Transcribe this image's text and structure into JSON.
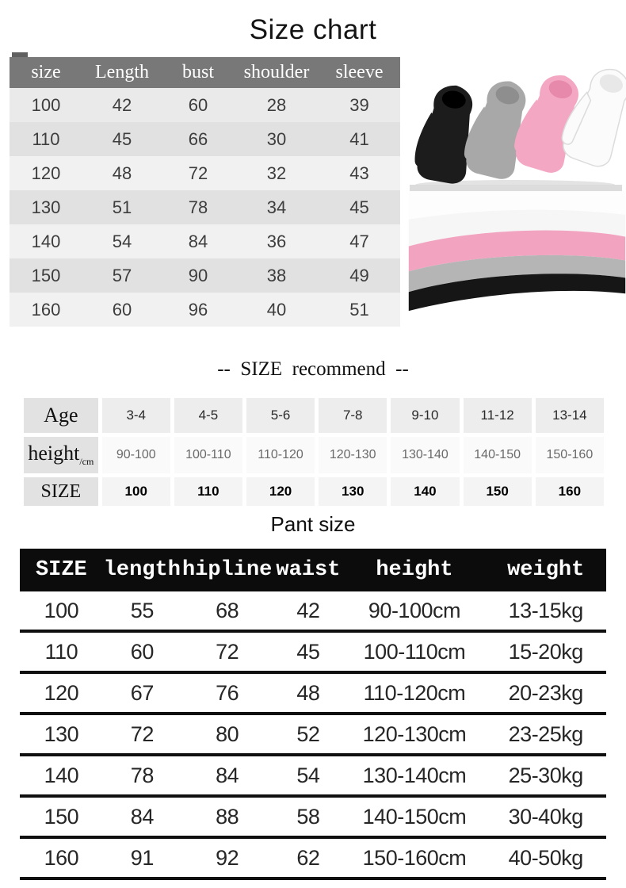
{
  "colors": {
    "header_gray": "#787878",
    "pant_header_black": "#0c0c0c",
    "hoodie_black": "#1c1c1c",
    "hoodie_gray": "#a8a8a8",
    "hoodie_pink": "#f4a7c3",
    "hoodie_white": "#fbfbfb",
    "fabric_white": "#f6f6f6",
    "fabric_pink": "#f2a3c0",
    "fabric_gray": "#b5b5b5",
    "fabric_black": "#161616"
  },
  "titles": {
    "main": "Size chart",
    "recommend": "--  SIZE  recommend  --",
    "pant": "Pant size"
  },
  "size_chart": {
    "headers": [
      "size",
      "Length",
      "bust",
      "shoulder",
      "sleeve"
    ],
    "rows": [
      [
        "100",
        "42",
        "60",
        "28",
        "39"
      ],
      [
        "110",
        "45",
        "66",
        "30",
        "41"
      ],
      [
        "120",
        "48",
        "72",
        "32",
        "43"
      ],
      [
        "130",
        "51",
        "78",
        "34",
        "45"
      ],
      [
        "140",
        "54",
        "84",
        "36",
        "47"
      ],
      [
        "150",
        "57",
        "90",
        "38",
        "49"
      ],
      [
        "160",
        "60",
        "96",
        "40",
        "51"
      ]
    ]
  },
  "size_recommend": {
    "rows": [
      {
        "label": "Age",
        "sub": "",
        "values": [
          "3-4",
          "4-5",
          "5-6",
          "7-8",
          "9-10",
          "11-12",
          "13-14"
        ]
      },
      {
        "label": "height",
        "sub": "/cm",
        "values": [
          "90-100",
          "100-110",
          "110-120",
          "120-130",
          "130-140",
          "140-150",
          "150-160"
        ]
      },
      {
        "label": "SIZE",
        "sub": "",
        "values": [
          "100",
          "110",
          "120",
          "130",
          "140",
          "150",
          "160"
        ]
      }
    ]
  },
  "pant_size": {
    "headers": [
      "SIZE",
      "length",
      "hipline",
      "waist",
      "height",
      "weight"
    ],
    "rows": [
      [
        "100",
        "55",
        "68",
        "42",
        "90-100cm",
        "13-15kg"
      ],
      [
        "110",
        "60",
        "72",
        "45",
        "100-110cm",
        "15-20kg"
      ],
      [
        "120",
        "67",
        "76",
        "48",
        "110-120cm",
        "20-23kg"
      ],
      [
        "130",
        "72",
        "80",
        "52",
        "120-130cm",
        "23-25kg"
      ],
      [
        "140",
        "78",
        "84",
        "54",
        "130-140cm",
        "25-30kg"
      ],
      [
        "150",
        "84",
        "88",
        "58",
        "140-150cm",
        "30-40kg"
      ],
      [
        "160",
        "91",
        "92",
        "62",
        "150-160cm",
        "40-50kg"
      ]
    ]
  }
}
